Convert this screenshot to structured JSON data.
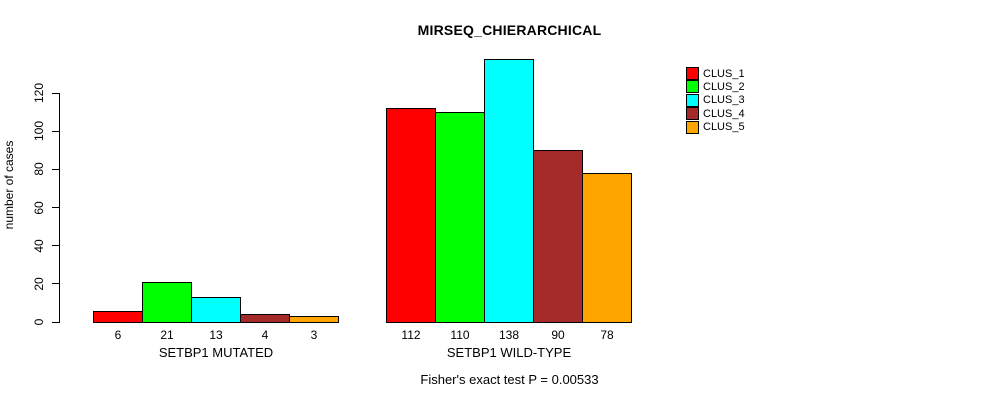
{
  "chart_data": {
    "type": "bar",
    "title": "MIRSEQ_CHIERARCHICAL",
    "ylabel": "number of cases",
    "xlabel": "",
    "footnote": "Fisher's exact test P = 0.00533",
    "categories": [
      "SETBP1 MUTATED",
      "SETBP1 WILD-TYPE"
    ],
    "series": [
      {
        "name": "CLUS_1",
        "color": "#ff0000",
        "values": [
          6,
          112
        ]
      },
      {
        "name": "CLUS_2",
        "color": "#00ff00",
        "values": [
          21,
          110
        ]
      },
      {
        "name": "CLUS_3",
        "color": "#00ffff",
        "values": [
          13,
          138
        ]
      },
      {
        "name": "CLUS_4",
        "color": "#a52a2a",
        "values": [
          4,
          90
        ]
      },
      {
        "name": "CLUS_5",
        "color": "#ffa500",
        "values": [
          3,
          78
        ]
      }
    ],
    "yticks": [
      0,
      20,
      40,
      60,
      80,
      100,
      120
    ],
    "ylim": [
      0,
      138
    ],
    "grid": false,
    "legend_position": "top-right",
    "bar_value_labels": "below axis",
    "axis_color": "#000000",
    "bar_border_color": "#000000",
    "background_color": "#ffffff"
  }
}
